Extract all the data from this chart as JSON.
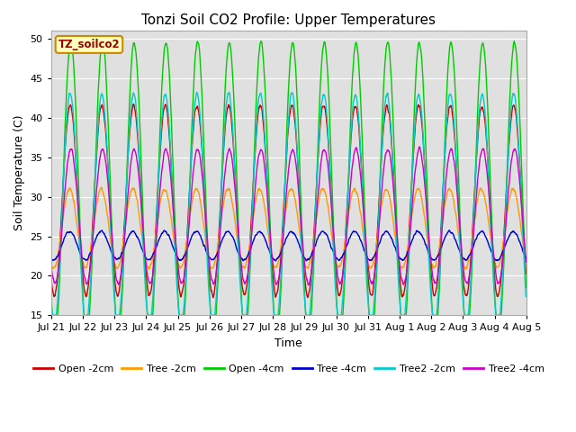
{
  "title": "Tonzi Soil CO2 Profile: Upper Temperatures",
  "xlabel": "Time",
  "ylabel": "Soil Temperature (C)",
  "ylim": [
    15,
    51
  ],
  "yticks": [
    15,
    20,
    25,
    30,
    35,
    40,
    45,
    50
  ],
  "background_color": "#ffffff",
  "plot_bg_color": "#e0e0e0",
  "grid_color": "#ffffff",
  "label_box_text": "TZ_soilco2",
  "series": [
    {
      "label": "Open -2cm",
      "color": "#cc0000",
      "key": "open_2cm"
    },
    {
      "label": "Tree -2cm",
      "color": "#ff9900",
      "key": "tree_2cm"
    },
    {
      "label": "Open -4cm",
      "color": "#00cc00",
      "key": "open_4cm"
    },
    {
      "label": "Tree -4cm",
      "color": "#0000cc",
      "key": "tree_4cm"
    },
    {
      "label": "Tree2 -2cm",
      "color": "#00cccc",
      "key": "tree2_2cm"
    },
    {
      "label": "Tree2 -4cm",
      "color": "#cc00cc",
      "key": "tree2_4cm"
    }
  ],
  "n_days": 15,
  "points_per_day": 144,
  "params": {
    "open_2cm": {
      "base": 29.5,
      "amp": 12.0,
      "phase_hr": 14.5,
      "noise": 0.3
    },
    "tree_2cm": {
      "base": 26.0,
      "amp": 5.0,
      "phase_hr": 14.0,
      "noise": 0.25
    },
    "open_4cm": {
      "base": 31.0,
      "amp": 18.5,
      "phase_hr": 15.0,
      "noise": 0.3
    },
    "tree_4cm": {
      "base": 23.8,
      "amp": 1.8,
      "phase_hr": 14.0,
      "noise": 0.15
    },
    "tree2_2cm": {
      "base": 28.5,
      "amp": 14.5,
      "phase_hr": 14.5,
      "noise": 0.3
    },
    "tree2_4cm": {
      "base": 27.5,
      "amp": 8.5,
      "phase_hr": 15.0,
      "noise": 0.25
    }
  },
  "x_tick_labels": [
    "Jul 21",
    "Jul 22",
    "Jul 23",
    "Jul 24",
    "Jul 25",
    "Jul 26",
    "Jul 27",
    "Jul 28",
    "Jul 29",
    "Jul 30",
    "Jul 31",
    "Aug 1",
    "Aug 2",
    "Aug 3",
    "Aug 4",
    "Aug 5"
  ],
  "title_fontsize": 11,
  "axis_fontsize": 9,
  "tick_fontsize": 8,
  "legend_fontsize": 8,
  "linewidth": 1.0
}
